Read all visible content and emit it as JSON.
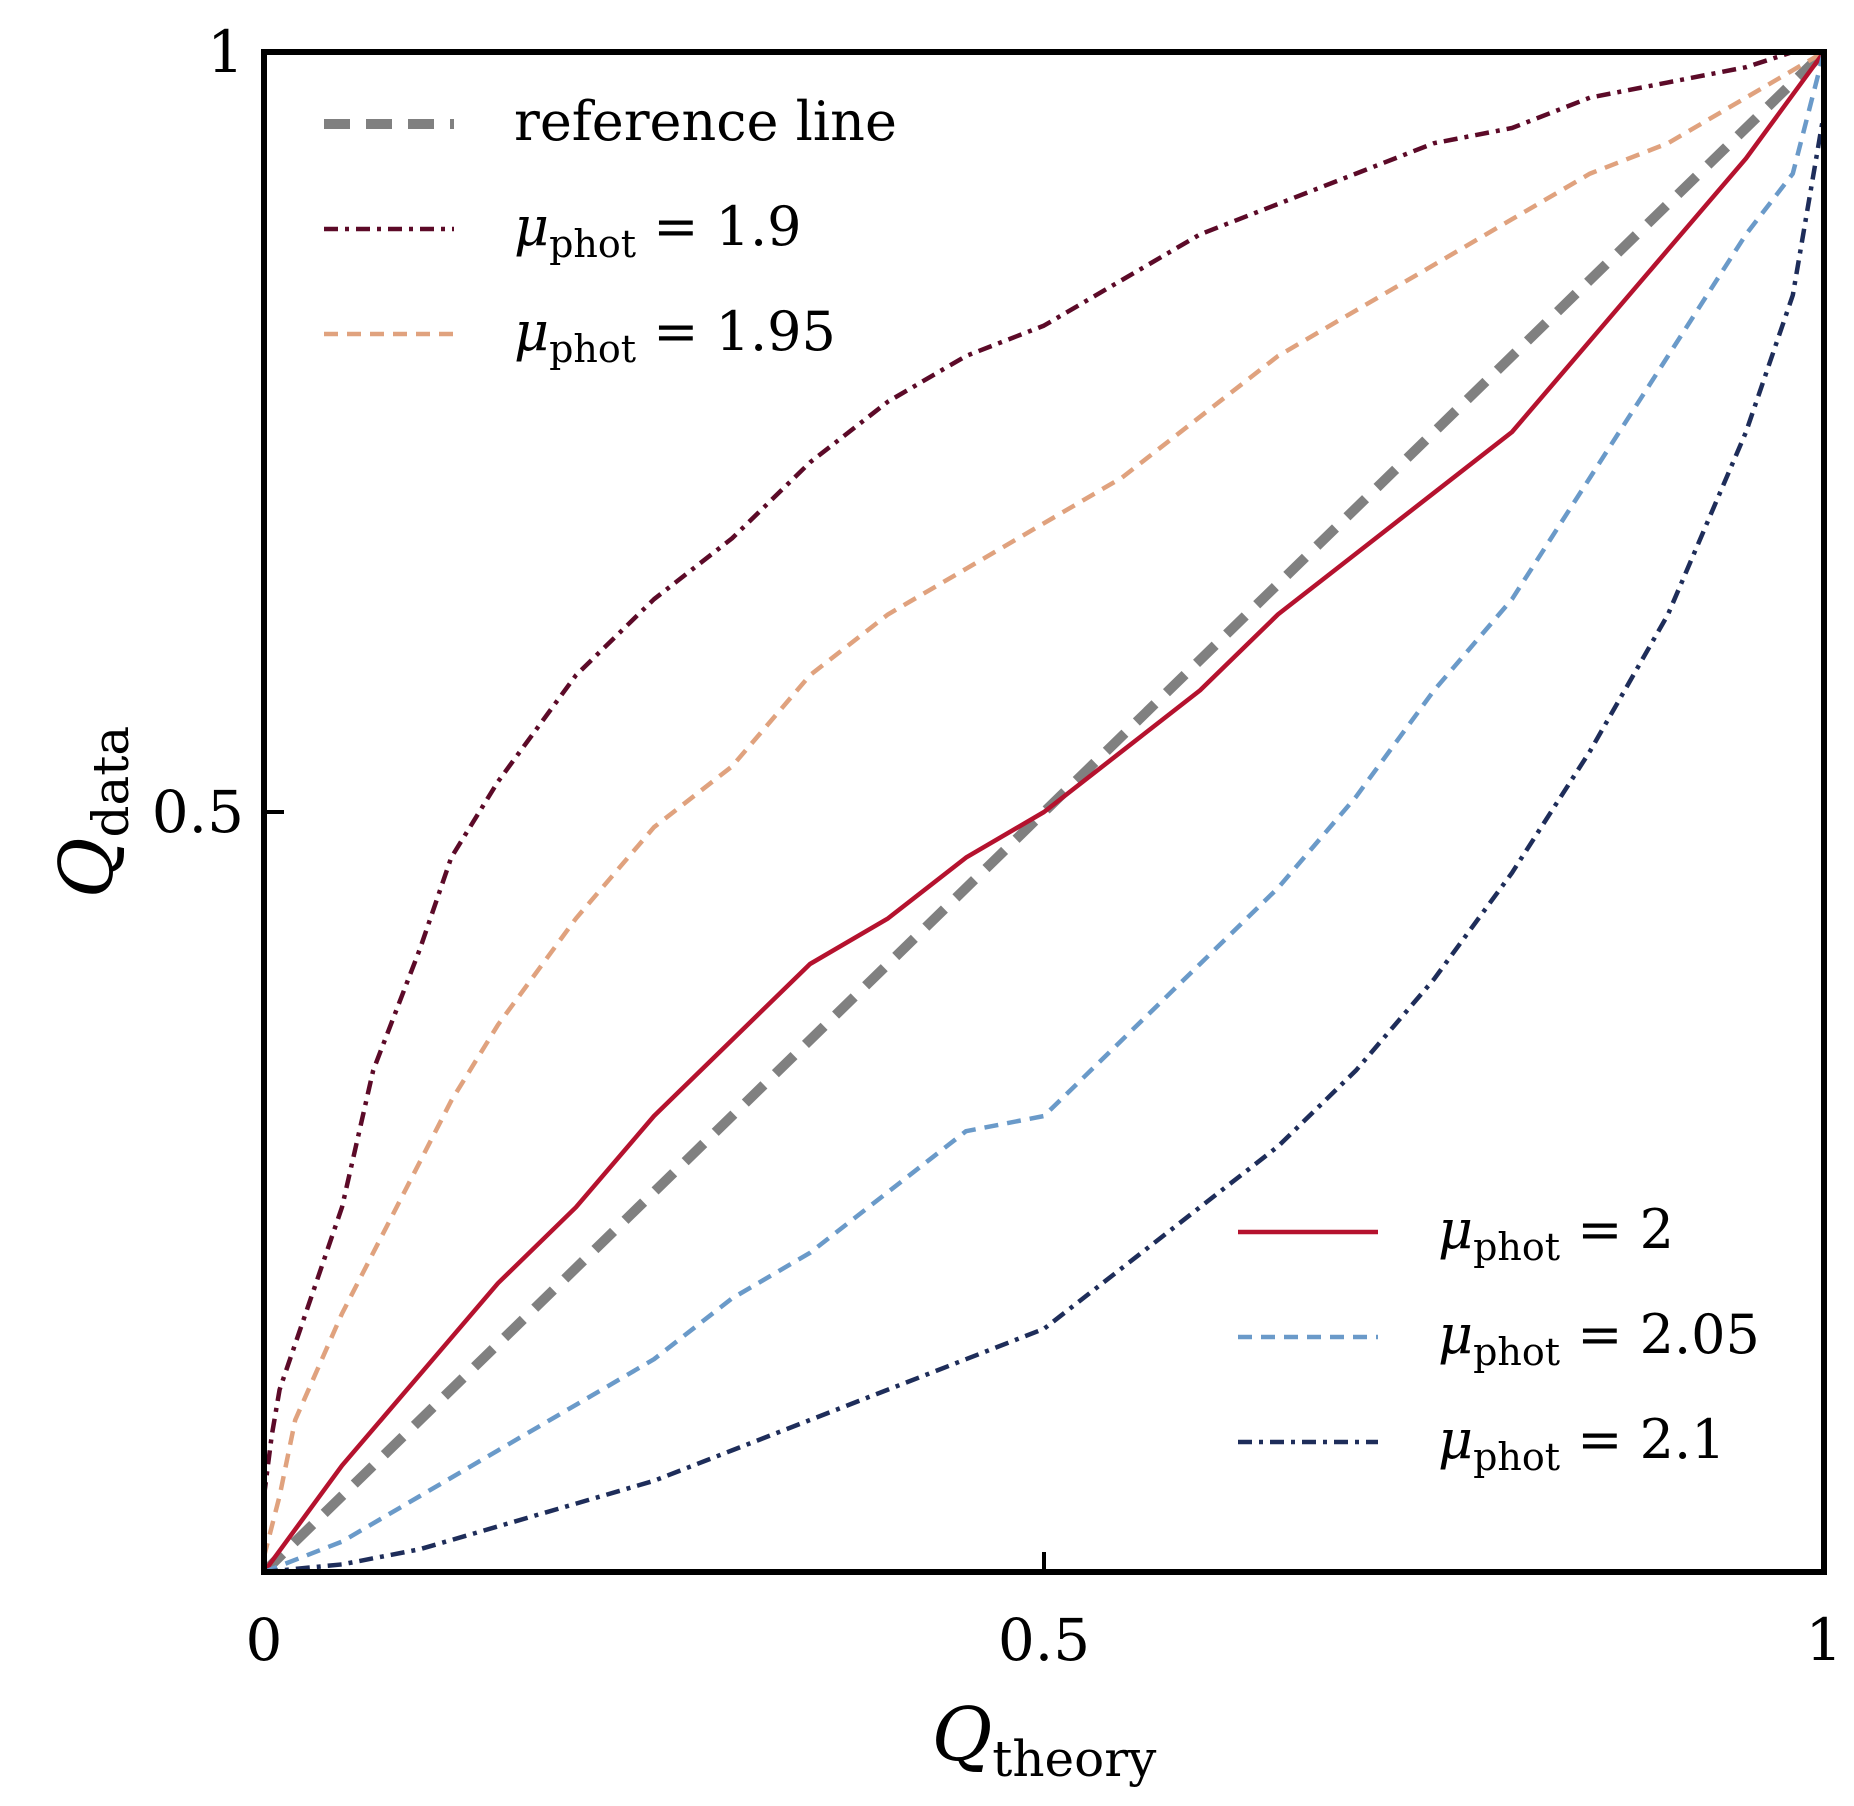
{
  "chart_data": {
    "type": "line",
    "xlabel": {
      "main": "Q",
      "sub": "theory"
    },
    "ylabel": {
      "main": "Q",
      "sub": "data"
    },
    "xlim": [
      0,
      1
    ],
    "ylim": [
      0,
      1
    ],
    "xticks": [
      {
        "value": 0,
        "label": "0"
      },
      {
        "value": 0.5,
        "label": "0.5"
      },
      {
        "value": 1,
        "label": "1"
      }
    ],
    "yticks": [
      {
        "value": 0.5,
        "label": "0.5"
      },
      {
        "value": 1,
        "label": "1"
      }
    ],
    "grid": false,
    "legends": [
      {
        "placement": "top-left",
        "series": [
          "reference",
          "mu190",
          "mu195"
        ]
      },
      {
        "placement": "bottom-right",
        "series": [
          "mu200",
          "mu205",
          "mu210"
        ]
      }
    ],
    "series": [
      {
        "key": "reference",
        "label": "reference line",
        "color": "#808080",
        "dash": "dashed-thick",
        "x": [
          0,
          1
        ],
        "y": [
          0,
          1
        ]
      },
      {
        "key": "mu190",
        "label": {
          "symbol": "μ",
          "sub": "phot",
          "rest": " = 1.9"
        },
        "color": "#5c0a28",
        "dash": "dashdot",
        "x": [
          0,
          0.005,
          0.01,
          0.02,
          0.03,
          0.05,
          0.07,
          0.1,
          0.12,
          0.15,
          0.2,
          0.25,
          0.3,
          0.35,
          0.4,
          0.45,
          0.5,
          0.55,
          0.6,
          0.65,
          0.7,
          0.75,
          0.8,
          0.85,
          0.9,
          0.95,
          0.98,
          1
        ],
        "y": [
          0.05,
          0.09,
          0.12,
          0.15,
          0.18,
          0.24,
          0.33,
          0.41,
          0.47,
          0.52,
          0.59,
          0.64,
          0.68,
          0.73,
          0.77,
          0.8,
          0.82,
          0.85,
          0.88,
          0.9,
          0.92,
          0.94,
          0.95,
          0.97,
          0.98,
          0.99,
          1,
          1
        ]
      },
      {
        "key": "mu195",
        "label": {
          "symbol": "μ",
          "sub": "phot",
          "rest": " = 1.95"
        },
        "color": "#e0a27e",
        "dash": "dashed",
        "x": [
          0,
          0.01,
          0.02,
          0.05,
          0.08,
          0.1,
          0.12,
          0.15,
          0.2,
          0.25,
          0.3,
          0.35,
          0.4,
          0.45,
          0.5,
          0.55,
          0.6,
          0.65,
          0.7,
          0.75,
          0.8,
          0.85,
          0.9,
          0.95,
          1
        ],
        "y": [
          0.01,
          0.05,
          0.1,
          0.17,
          0.23,
          0.27,
          0.31,
          0.36,
          0.43,
          0.49,
          0.53,
          0.59,
          0.63,
          0.66,
          0.69,
          0.72,
          0.76,
          0.8,
          0.83,
          0.86,
          0.89,
          0.92,
          0.94,
          0.97,
          1
        ]
      },
      {
        "key": "mu200",
        "label": {
          "symbol": "μ",
          "sub": "phot",
          "rest": " = 2"
        },
        "color": "#b5122e",
        "dash": "solid",
        "x": [
          0,
          0.05,
          0.1,
          0.15,
          0.2,
          0.25,
          0.3,
          0.35,
          0.4,
          0.45,
          0.5,
          0.55,
          0.6,
          0.65,
          0.7,
          0.75,
          0.8,
          0.85,
          0.9,
          0.95,
          1
        ],
        "y": [
          0,
          0.07,
          0.13,
          0.19,
          0.24,
          0.3,
          0.35,
          0.4,
          0.43,
          0.47,
          0.5,
          0.54,
          0.58,
          0.63,
          0.67,
          0.71,
          0.75,
          0.81,
          0.87,
          0.93,
          1
        ]
      },
      {
        "key": "mu205",
        "label": {
          "symbol": "μ",
          "sub": "phot",
          "rest": " = 2.05"
        },
        "color": "#6a9ac9",
        "dash": "dashed",
        "x": [
          0,
          0.05,
          0.1,
          0.15,
          0.2,
          0.25,
          0.3,
          0.35,
          0.4,
          0.45,
          0.5,
          0.55,
          0.6,
          0.65,
          0.7,
          0.75,
          0.8,
          0.85,
          0.9,
          0.95,
          0.98,
          1
        ],
        "y": [
          0,
          0.02,
          0.05,
          0.08,
          0.11,
          0.14,
          0.18,
          0.21,
          0.25,
          0.29,
          0.3,
          0.35,
          0.4,
          0.45,
          0.51,
          0.58,
          0.64,
          0.72,
          0.8,
          0.88,
          0.92,
          1
        ]
      },
      {
        "key": "mu210",
        "label": {
          "symbol": "μ",
          "sub": "phot",
          "rest": " = 2.1"
        },
        "color": "#1e2d5a",
        "dash": "dashdot",
        "x": [
          0,
          0.05,
          0.1,
          0.15,
          0.2,
          0.25,
          0.3,
          0.35,
          0.4,
          0.45,
          0.5,
          0.55,
          0.6,
          0.65,
          0.7,
          0.75,
          0.8,
          0.85,
          0.9,
          0.95,
          0.98,
          1
        ],
        "y": [
          0,
          0.005,
          0.015,
          0.03,
          0.045,
          0.06,
          0.08,
          0.1,
          0.12,
          0.14,
          0.16,
          0.2,
          0.24,
          0.28,
          0.33,
          0.39,
          0.46,
          0.54,
          0.63,
          0.75,
          0.84,
          0.96
        ]
      }
    ]
  }
}
